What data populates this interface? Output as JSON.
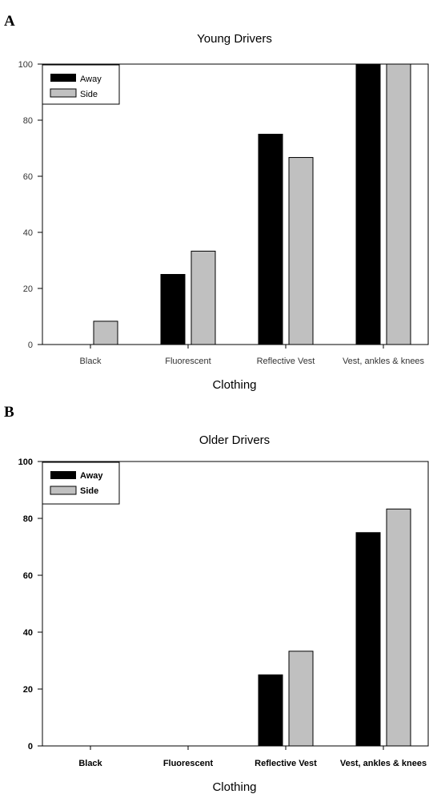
{
  "panels": [
    {
      "letter": "A"
    },
    {
      "letter": "B"
    }
  ],
  "chart_data": [
    {
      "type": "bar",
      "title": "Young Drivers",
      "xlabel": "Clothing",
      "ylabel": "",
      "ylim": [
        0,
        100
      ],
      "yticks": [
        0,
        20,
        40,
        60,
        80,
        100
      ],
      "categories": [
        "Black",
        "Fluorescent",
        "Reflective Vest",
        "Vest, ankles & knees"
      ],
      "series": [
        {
          "name": "Away",
          "color": "#000000",
          "values": [
            0,
            25,
            75,
            100
          ]
        },
        {
          "name": "Side",
          "color": "#c0c0c0",
          "values": [
            8.3,
            33.3,
            66.7,
            100
          ]
        }
      ],
      "legend": "top-left",
      "grid": false
    },
    {
      "type": "bar",
      "title": "Older Drivers",
      "xlabel": "Clothing",
      "ylabel": "",
      "ylim": [
        0,
        100
      ],
      "yticks": [
        0,
        20,
        40,
        60,
        80,
        100
      ],
      "categories": [
        "Black",
        "Fluorescent",
        "Reflective Vest",
        "Vest, ankles & knees"
      ],
      "series": [
        {
          "name": "Away",
          "color": "#000000",
          "values": [
            0,
            0,
            25,
            75
          ]
        },
        {
          "name": "Side",
          "color": "#c0c0c0",
          "values": [
            0,
            0,
            33.3,
            83.3
          ]
        }
      ],
      "legend": "top-left",
      "grid": false
    }
  ]
}
